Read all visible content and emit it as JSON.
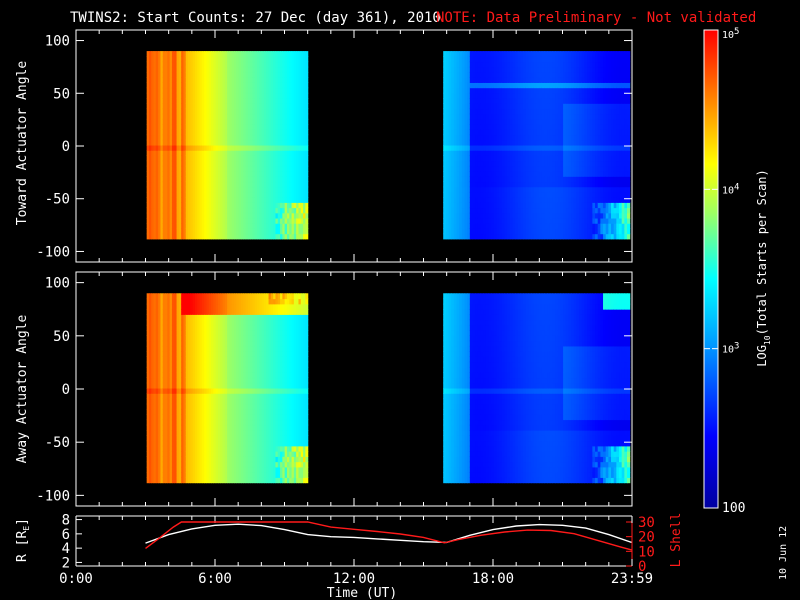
{
  "title": {
    "main": "TWINS2: Start Counts: 27 Dec (day 361), 2010",
    "note": "NOTE: Data Preliminary - Not validated",
    "note_color": "#ff1a1a"
  },
  "date_stamp": "10 Jun 12",
  "chart_data": [
    {
      "type": "heatmap",
      "ylabel": "Toward Actuator Angle",
      "ylim": [
        -110,
        110
      ],
      "yticks": [
        100,
        50,
        0,
        -50,
        -100
      ],
      "xlim_hours": [
        0,
        24
      ],
      "data_segments_hours": [
        [
          3.05,
          10.0
        ],
        [
          15.85,
          23.9
        ]
      ],
      "angle_range": [
        -88,
        90
      ]
    },
    {
      "type": "heatmap",
      "ylabel": "Away Actuator Angle",
      "ylim": [
        -110,
        110
      ],
      "yticks": [
        100,
        50,
        0,
        -50,
        -100
      ],
      "xlim_hours": [
        0,
        24
      ],
      "data_segments_hours": [
        [
          3.05,
          10.0
        ],
        [
          15.85,
          23.9
        ]
      ],
      "angle_range": [
        -88,
        90
      ]
    },
    {
      "type": "line",
      "ylabel_left": "R [RE]",
      "ylabel_right": "L Shell",
      "ylim_left": [
        1.5,
        8.5
      ],
      "yticks_left": [
        2,
        4,
        6,
        8
      ],
      "ylim_right": [
        0,
        30
      ],
      "yticks_right": [
        0,
        10,
        20,
        30
      ],
      "right_axis_color": "#ff1a1a",
      "xlabel": "Time (UT)",
      "xticks": [
        "0:00",
        "6:00",
        "12:00",
        "18:00",
        "23:59"
      ],
      "xtick_hours": [
        0,
        6,
        12,
        18,
        24
      ],
      "series": [
        {
          "name": "R",
          "axis": "left",
          "color": "#ffffff",
          "x": [
            3.0,
            4.0,
            5.0,
            6.0,
            7.0,
            8.0,
            9.0,
            10.0,
            11.0,
            12.0,
            13.0,
            14.0,
            15.0,
            16.0,
            17.0,
            18.0,
            19.0,
            20.0,
            21.0,
            22.0,
            23.0,
            23.98
          ],
          "values": [
            4.7,
            5.9,
            6.7,
            7.2,
            7.35,
            7.15,
            6.6,
            5.9,
            5.6,
            5.5,
            5.3,
            5.1,
            4.9,
            4.8,
            5.8,
            6.6,
            7.1,
            7.3,
            7.2,
            6.8,
            5.9,
            4.8
          ]
        },
        {
          "name": "L Shell",
          "axis": "right",
          "color": "#ff1a1a",
          "x": [
            3.0,
            3.6,
            4.2,
            4.55,
            10.0,
            11.0,
            12.0,
            13.0,
            14.0,
            15.0,
            15.9,
            16.5,
            17.5,
            18.5,
            19.5,
            20.5,
            21.5,
            22.5,
            23.5,
            23.98
          ],
          "values": [
            12.0,
            19.0,
            26.5,
            30.0,
            30.0,
            26.5,
            25.0,
            23.5,
            21.8,
            19.5,
            15.8,
            18.0,
            21.0,
            23.2,
            24.5,
            24.2,
            22.0,
            17.5,
            13.0,
            11.0
          ]
        }
      ]
    }
  ],
  "colorbar": {
    "label": "LOG10(Total Starts per Scan)",
    "ticks": [
      {
        "text": "10^5",
        "value": 100000
      },
      {
        "text": "10^4",
        "value": 10000
      },
      {
        "text": "10^3",
        "value": 1000
      },
      {
        "text": "100",
        "value": 100
      }
    ],
    "range": [
      100,
      100000
    ],
    "scale": "log"
  }
}
